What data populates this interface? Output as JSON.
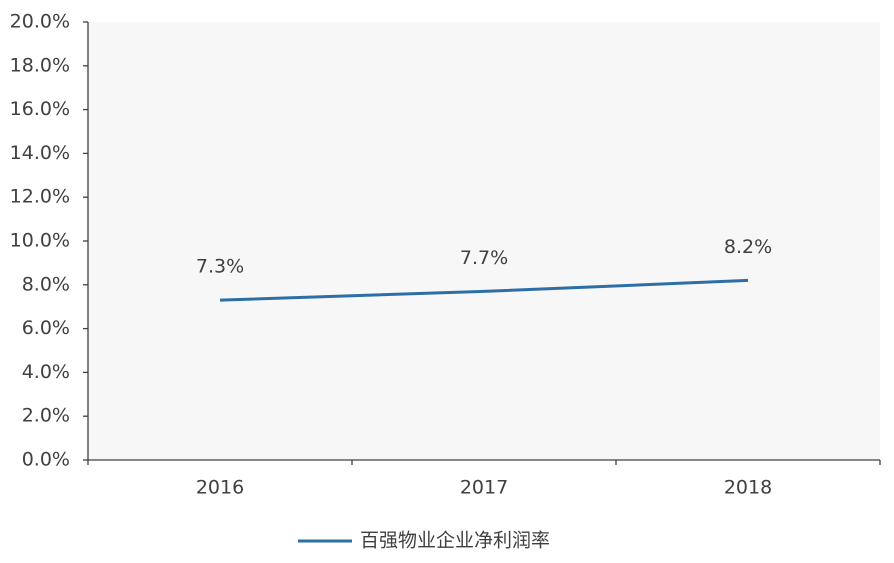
{
  "chart_data": {
    "type": "line",
    "categories": [
      "2016",
      "2017",
      "2018"
    ],
    "series": [
      {
        "name": "百强物业企业净利润率",
        "color": "#2e6ea6",
        "values": [
          7.3,
          7.7,
          8.2
        ],
        "value_labels": [
          "7.3%",
          "7.7%",
          "8.2%"
        ]
      }
    ],
    "ylim": [
      0,
      20
    ],
    "yticks": [
      {
        "value": 0,
        "label": "0.0%"
      },
      {
        "value": 2,
        "label": "2.0%"
      },
      {
        "value": 4,
        "label": "4.0%"
      },
      {
        "value": 6,
        "label": "6.0%"
      },
      {
        "value": 8,
        "label": "8.0%"
      },
      {
        "value": 10,
        "label": "10.0%"
      },
      {
        "value": 12,
        "label": "12.0%"
      },
      {
        "value": 14,
        "label": "14.0%"
      },
      {
        "value": 16,
        "label": "16.0%"
      },
      {
        "value": 18,
        "label": "18.0%"
      },
      {
        "value": 20,
        "label": "20.0%"
      }
    ],
    "legend": "bottom"
  }
}
